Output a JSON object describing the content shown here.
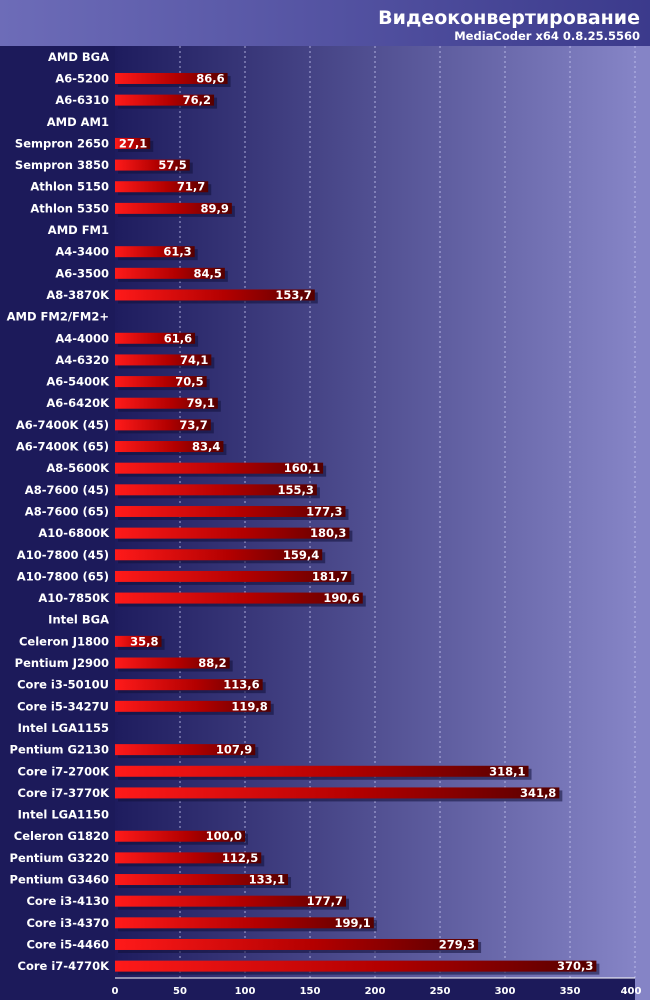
{
  "chart_data": {
    "type": "bar",
    "orientation": "horizontal",
    "title": "Видеоконвертирование",
    "subtitle": "MediaCoder x64 0.8.25.5560",
    "categories": [
      "AMD BGA",
      "A6-5200",
      "A6-6310",
      "AMD AM1",
      "Sempron 2650",
      "Sempron 3850",
      "Athlon 5150",
      "Athlon 5350",
      "AMD FM1",
      "A4-3400",
      "A6-3500",
      "A8-3870K",
      "AMD FM2/FM2+",
      "A4-4000",
      "A4-6320",
      "A6-5400K",
      "A6-6420K",
      "A6-7400K (45)",
      "A6-7400K (65)",
      "A8-5600K",
      "A8-7600 (45)",
      "A8-7600 (65)",
      "A10-6800K",
      "A10-7800 (45)",
      "A10-7800 (65)",
      "A10-7850K",
      "Intel BGA",
      "Celeron J1800",
      "Pentium J2900",
      "Core i3-5010U",
      "Core i5-3427U",
      "Intel LGA1155",
      "Pentium G2130",
      "Core i7-2700K",
      "Core i7-3770K",
      "Intel LGA1150",
      "Celeron G1820",
      "Pentium G3220",
      "Pentium G3460",
      "Core i3-4130",
      "Core i3-4370",
      "Core i5-4460",
      "Core i7-4770K"
    ],
    "values": [
      null,
      86.6,
      76.2,
      null,
      27.1,
      57.5,
      71.7,
      89.9,
      null,
      61.3,
      84.5,
      153.7,
      null,
      61.6,
      74.1,
      70.5,
      79.1,
      73.7,
      83.4,
      160.1,
      155.3,
      177.3,
      180.3,
      159.4,
      181.7,
      190.6,
      null,
      35.8,
      88.2,
      113.6,
      119.8,
      null,
      107.9,
      318.1,
      341.8,
      null,
      100.0,
      112.5,
      133.1,
      177.7,
      199.1,
      279.3,
      370.3
    ],
    "value_labels": [
      "",
      "86,6",
      "76,2",
      "",
      "27,1",
      "57,5",
      "71,7",
      "89,9",
      "",
      "61,3",
      "84,5",
      "153,7",
      "",
      "61,6",
      "74,1",
      "70,5",
      "79,1",
      "73,7",
      "83,4",
      "160,1",
      "155,3",
      "177,3",
      "180,3",
      "159,4",
      "181,7",
      "190,6",
      "",
      "35,8",
      "88,2",
      "113,6",
      "119,8",
      "",
      "107,9",
      "318,1",
      "341,8",
      "",
      "100,0",
      "112,5",
      "133,1",
      "177,7",
      "199,1",
      "279,3",
      "370,3"
    ],
    "xlim": [
      0,
      400
    ],
    "xticks": [
      0,
      50,
      100,
      150,
      200,
      250,
      300,
      350,
      400
    ],
    "xtick_labels": [
      "0",
      "50",
      "100",
      "150",
      "200",
      "250",
      "300",
      "350",
      "400"
    ],
    "grid": true,
    "colors": {
      "background_left": "#1e1c5e",
      "background_right": "#8584c6",
      "bar_light": "#ff1a1a",
      "bar_dark": "#550000",
      "grid": "#c8c8f0",
      "text": "#ffffff"
    }
  }
}
